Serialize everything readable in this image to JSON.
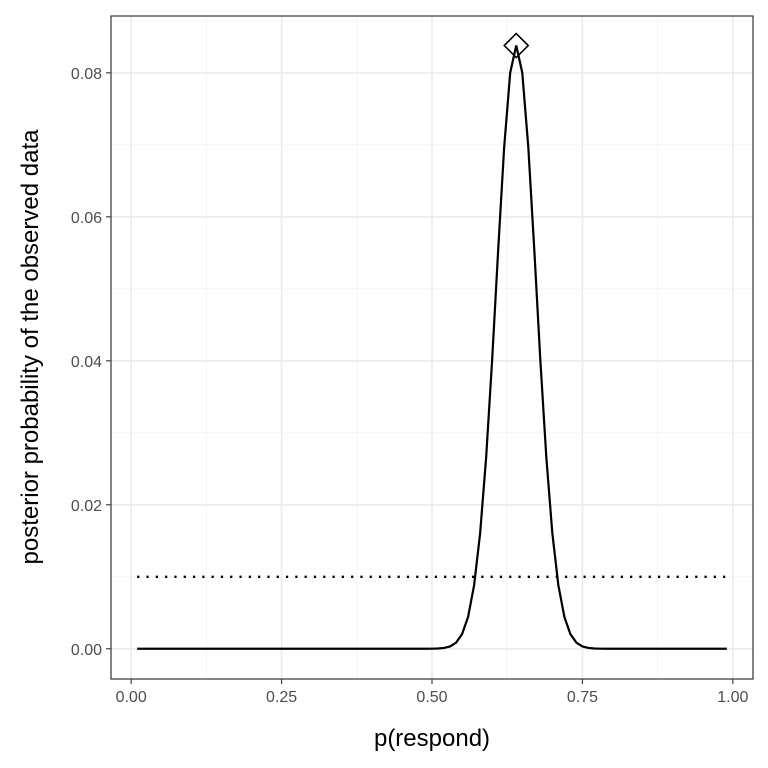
{
  "chart_data": {
    "type": "line",
    "title": "",
    "xlabel": "p(respond)",
    "ylabel": "posterior probability of the observed data",
    "xlim": [
      -0.0335,
      1.0335
    ],
    "ylim": [
      -0.0042,
      0.0879
    ],
    "x_ticks": [
      0.0,
      0.25,
      0.5,
      0.75,
      1.0
    ],
    "x_tick_labels": [
      "0.00",
      "0.25",
      "0.50",
      "0.75",
      "1.00"
    ],
    "y_ticks": [
      0.0,
      0.02,
      0.04,
      0.06,
      0.08
    ],
    "y_tick_labels": [
      "0.00",
      "0.02",
      "0.04",
      "0.06",
      "0.08"
    ],
    "grid": true,
    "series": [
      {
        "style": "solid",
        "color": "#000000",
        "curve": {
          "kind": "gaussian",
          "x_from": 0.01,
          "x_to": 0.99,
          "x_step": 0.01,
          "peak_x": 0.64,
          "peak_y": 0.0838,
          "sd": 0.033
        }
      },
      {
        "style": "dotted",
        "color": "#000000",
        "x": [
          0.01,
          0.99
        ],
        "y": [
          0.01,
          0.01
        ]
      }
    ],
    "markers": [
      {
        "shape": "diamond-open",
        "x": 0.64,
        "y": 0.0838,
        "color": "#000000"
      }
    ]
  }
}
